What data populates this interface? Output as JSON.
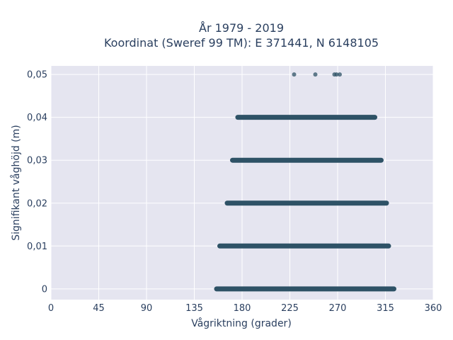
{
  "chart_data": {
    "type": "scatter",
    "title_lines": [
      "År 1979 - 2019",
      "Koordinat (Sweref 99 TM): E 371441, N 6148105"
    ],
    "xlabel": "Vågriktning (grader)",
    "ylabel": "Signifikant våghöjd (m)",
    "xlim": [
      0,
      360
    ],
    "ylim": [
      -0.0025,
      0.052
    ],
    "xticks": [
      0,
      45,
      90,
      135,
      180,
      225,
      270,
      315,
      360
    ],
    "xtick_labels": [
      "0",
      "45",
      "90",
      "135",
      "180",
      "225",
      "270",
      "315",
      "360"
    ],
    "yticks": [
      0,
      0.01,
      0.02,
      0.03,
      0.04,
      0.05
    ],
    "ytick_labels": [
      "0",
      "0,01",
      "0,02",
      "0,03",
      "0,04",
      "0,05"
    ],
    "grid": true,
    "marker_color": "#2e5266",
    "background_color": "#e5e5f0",
    "series": [
      {
        "y": 0,
        "x_min": 156,
        "x_max": 323
      },
      {
        "y": 0.01,
        "x_min": 159,
        "x_max": 318
      },
      {
        "y": 0.02,
        "x_min": 166,
        "x_max": 316
      },
      {
        "y": 0.03,
        "x_min": 171,
        "x_max": 311
      },
      {
        "y": 0.04,
        "x_min": 176,
        "x_max": 305
      },
      {
        "y": 0.05,
        "x_points": [
          229,
          249,
          267,
          269,
          272
        ]
      }
    ]
  }
}
